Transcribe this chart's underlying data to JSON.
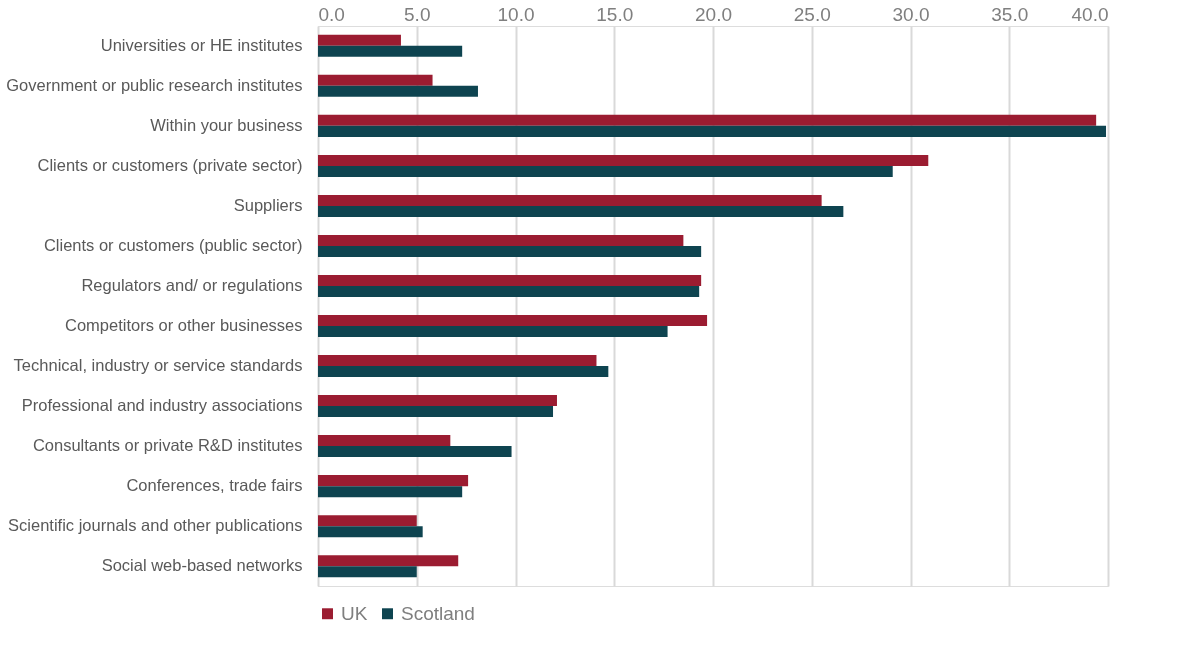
{
  "chart_data": {
    "type": "bar",
    "orientation": "horizontal",
    "categories": [
      "Universities or HE institutes",
      "Government or public research institutes",
      "Within your business",
      "Clients or customers (private sector)",
      "Suppliers",
      "Clients or customers (public sector)",
      "Regulators and/ or regulations",
      "Competitors or other businesses",
      "Technical, industry or service standards",
      "Professional and industry associations",
      "Consultants or private R&D institutes",
      "Conferences, trade fairs",
      "Scientific journals and other publications",
      "Social web-based networks"
    ],
    "series": [
      {
        "name": "UK",
        "color": "#9b1c31",
        "values": [
          4.2,
          5.8,
          39.4,
          30.9,
          25.5,
          18.5,
          19.4,
          19.7,
          14.1,
          12.1,
          6.7,
          7.6,
          5.0,
          7.1
        ]
      },
      {
        "name": "Scotland",
        "color": "#0e4450",
        "values": [
          7.3,
          8.1,
          39.9,
          29.1,
          26.6,
          19.4,
          19.3,
          17.7,
          14.7,
          11.9,
          9.8,
          7.3,
          5.3,
          5.0
        ]
      }
    ],
    "xlim": [
      0,
      40
    ],
    "xticks": [
      {
        "value": 0,
        "label": "0.0"
      },
      {
        "value": 5,
        "label": "5.0"
      },
      {
        "value": 10,
        "label": "10.0"
      },
      {
        "value": 15,
        "label": "15.0"
      },
      {
        "value": 20,
        "label": "20.0"
      },
      {
        "value": 25,
        "label": "25.0"
      },
      {
        "value": 30,
        "label": "30.0"
      },
      {
        "value": 35,
        "label": "35.0"
      },
      {
        "value": 40,
        "label": "40.0"
      }
    ],
    "grid": "x",
    "legend": "bottom"
  }
}
